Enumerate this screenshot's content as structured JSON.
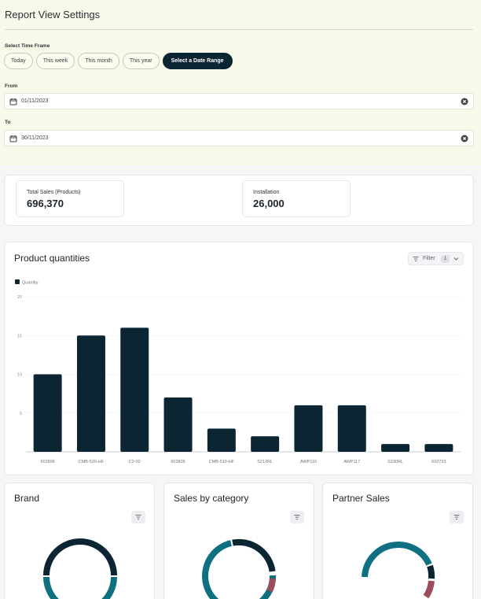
{
  "settings": {
    "title": "Report View Settings",
    "time_frame_label": "Select Time Frame",
    "time_frame_options": [
      "Today",
      "This week",
      "This month",
      "This year",
      "Select a Date Range"
    ],
    "selected_time_frame": "Select a Date Range",
    "from_label": "From",
    "from_value": "01/11/2023",
    "to_label": "To",
    "to_value": "30/11/2023"
  },
  "stats": [
    {
      "label": "Total Sales (Products)",
      "value": "696,370"
    },
    {
      "label": "Installation",
      "value": "26,000"
    }
  ],
  "product_chart": {
    "title": "Product quantities",
    "filter_label": "Filter",
    "filter_count": "1"
  },
  "chart_data": {
    "type": "bar",
    "title": "Product quantities",
    "categories": [
      "602806",
      "CMB-520-HF",
      "C2-02",
      "602805",
      "CMB-510-HF",
      "S212RL",
      "AWP110",
      "AWP117",
      "S330RL",
      "602733"
    ],
    "series": [
      {
        "name": "Quantity",
        "values": [
          10,
          15,
          16,
          7,
          3,
          2,
          6,
          6,
          1,
          1
        ]
      }
    ],
    "ylim": [
      0,
      20
    ],
    "yticks": [
      5,
      10,
      15,
      20
    ],
    "grid": true,
    "legend": "top-left",
    "bar_color": "#0b2533"
  },
  "donut_cards": [
    {
      "title": "Brand"
    },
    {
      "title": "Sales by category"
    },
    {
      "title": "Partner Sales"
    }
  ],
  "colors": {
    "dark": "#0b2533",
    "teal": "#0e7080",
    "rose": "#9b4d5a",
    "settings_bg": "#f8f9e9"
  },
  "icons": [
    "calendar-icon",
    "clear-icon",
    "filter-icon",
    "chevron-down-icon"
  ]
}
